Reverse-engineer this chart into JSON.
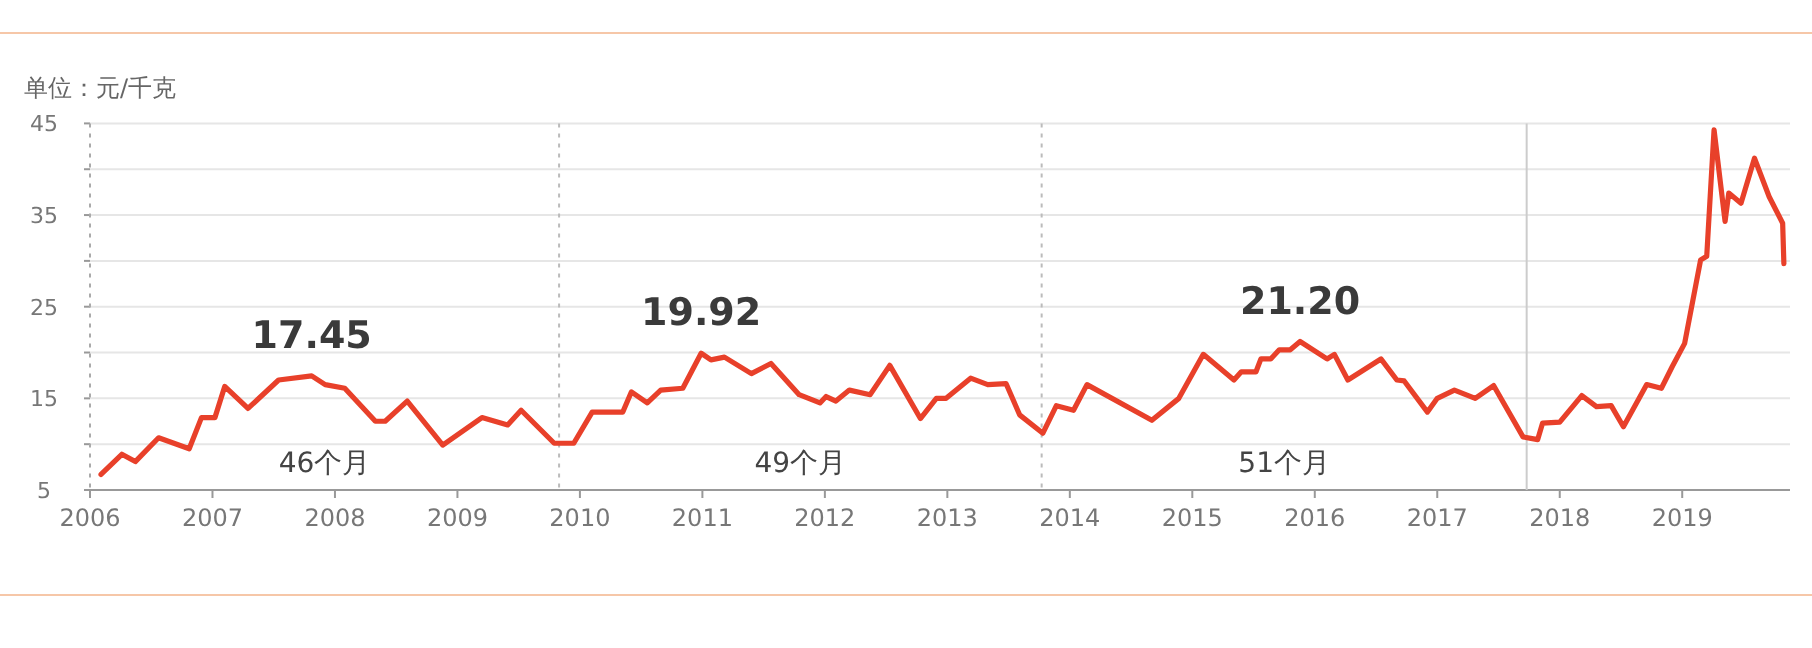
{
  "chart_data": {
    "type": "line",
    "ylabel": "单位：元/千克",
    "x": [
      2006.09,
      2006.26,
      2006.37,
      2006.56,
      2006.81,
      2006.91,
      2007.02,
      2007.1,
      2007.29,
      2007.54,
      2007.81,
      2007.92,
      2008.08,
      2008.33,
      2008.41,
      2008.59,
      2008.88,
      2009.2,
      2009.41,
      2009.52,
      2009.79,
      2009.95,
      2010.1,
      2010.35,
      2010.42,
      2010.55,
      2010.66,
      2010.84,
      2010.99,
      2011.07,
      2011.18,
      2011.4,
      2011.56,
      2011.79,
      2011.96,
      2012.01,
      2012.09,
      2012.2,
      2012.37,
      2012.53,
      2012.78,
      2012.91,
      2012.99,
      2013.19,
      2013.33,
      2013.48,
      2013.59,
      2013.78,
      2013.89,
      2014.03,
      2014.14,
      2014.67,
      2014.89,
      2015.09,
      2015.34,
      2015.4,
      2015.52,
      2015.56,
      2015.64,
      2015.71,
      2015.8,
      2015.88,
      2016.1,
      2016.16,
      2016.27,
      2016.54,
      2016.67,
      2016.73,
      2016.92,
      2017.0,
      2017.14,
      2017.31,
      2017.46,
      2017.7,
      2017.82,
      2017.86,
      2018.0,
      2018.18,
      2018.3,
      2018.42,
      2018.52,
      2018.71,
      2018.83,
      2018.92,
      2019.02,
      2019.15,
      2019.2,
      2019.26,
      2019.35,
      2019.38,
      2019.48,
      2019.59,
      2019.71,
      2019.82,
      2019.83
    ],
    "values": [
      6.7,
      8.9,
      8.1,
      10.7,
      9.5,
      12.9,
      12.9,
      16.3,
      13.9,
      17.0,
      17.45,
      16.5,
      16.1,
      12.5,
      12.5,
      14.7,
      9.9,
      12.9,
      12.1,
      13.7,
      10.1,
      10.1,
      13.5,
      13.5,
      15.7,
      14.5,
      15.9,
      16.1,
      19.92,
      19.2,
      19.5,
      17.7,
      18.8,
      15.4,
      14.5,
      15.2,
      14.7,
      15.9,
      15.4,
      18.6,
      12.8,
      15.0,
      15.0,
      17.2,
      16.5,
      16.6,
      13.2,
      11.2,
      14.2,
      13.7,
      16.5,
      12.6,
      15.0,
      19.8,
      17.0,
      17.9,
      17.9,
      19.3,
      19.3,
      20.3,
      20.3,
      21.2,
      19.3,
      19.8,
      17.0,
      19.3,
      17.0,
      16.9,
      13.5,
      15.0,
      15.9,
      15.0,
      16.4,
      10.8,
      10.5,
      12.3,
      12.4,
      15.3,
      14.1,
      14.2,
      11.9,
      16.5,
      16.1,
      18.5,
      21.0,
      30.1,
      30.5,
      44.3,
      34.3,
      37.4,
      36.3,
      41.2,
      37.0,
      34.1,
      29.7
    ],
    "color": "#e8402a",
    "marker": "none",
    "line_style": "solid",
    "grid": "y",
    "xlim": [
      2006,
      2019.88
    ],
    "ylim": [
      5,
      45
    ],
    "xticks": [
      2006,
      2007,
      2008,
      2009,
      {
        "value": 2010,
        "label": "2010"
      },
      2011,
      2012,
      2013,
      2014,
      2015,
      2016,
      2017,
      2018,
      2019
    ],
    "yticks": [
      5,
      {
        "value": 10,
        "label": null
      },
      15,
      {
        "value": 20,
        "label": null
      },
      25,
      {
        "value": 30,
        "label": null
      },
      35,
      {
        "value": 40,
        "label": null
      },
      45
    ],
    "ref_lines": [
      {
        "axis": "x",
        "value": 2009.83,
        "color": "#bbbbbb",
        "line_style": "dotted"
      },
      {
        "axis": "x",
        "value": 2013.77,
        "color": "#bbbbbb",
        "line_style": "dotted"
      },
      {
        "axis": "x",
        "value": 2017.73,
        "color": "#cccccc",
        "line_style": "solid"
      }
    ],
    "annotations": [
      {
        "text": "17.45",
        "x": 2007.81,
        "y": 17.45
      },
      {
        "text": "19.92",
        "x": 2010.99,
        "y": 19.92
      },
      {
        "text": "21.20",
        "x": 2015.88,
        "y": 21.2
      },
      "46个月",
      "49个月",
      "51个月"
    ]
  }
}
